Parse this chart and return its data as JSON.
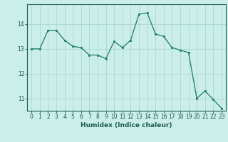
{
  "x": [
    0,
    1,
    2,
    3,
    4,
    5,
    6,
    7,
    8,
    9,
    10,
    11,
    12,
    13,
    14,
    15,
    16,
    17,
    18,
    19,
    20,
    21,
    22,
    23
  ],
  "y": [
    13.0,
    13.0,
    13.75,
    13.75,
    13.35,
    13.1,
    13.05,
    12.75,
    12.75,
    12.6,
    13.3,
    13.05,
    13.35,
    14.4,
    14.45,
    13.6,
    13.5,
    13.05,
    12.95,
    12.85,
    11.0,
    11.3,
    10.95,
    10.6
  ],
  "line_color": "#1a7a6e",
  "marker": "s",
  "marker_size": 2.0,
  "bg_color": "#cceee8",
  "grid_color": "#aad8d0",
  "xlabel": "Humidex (Indice chaleur)",
  "ylim": [
    10.5,
    14.8
  ],
  "xlim": [
    -0.5,
    23.5
  ],
  "yticks": [
    11,
    12,
    13,
    14
  ],
  "xticks": [
    0,
    1,
    2,
    3,
    4,
    5,
    6,
    7,
    8,
    9,
    10,
    11,
    12,
    13,
    14,
    15,
    16,
    17,
    18,
    19,
    20,
    21,
    22,
    23
  ],
  "tick_color": "#1a5c50",
  "spine_color": "#1a5c50",
  "xlabel_fontsize": 6.5,
  "tick_fontsize": 5.5
}
